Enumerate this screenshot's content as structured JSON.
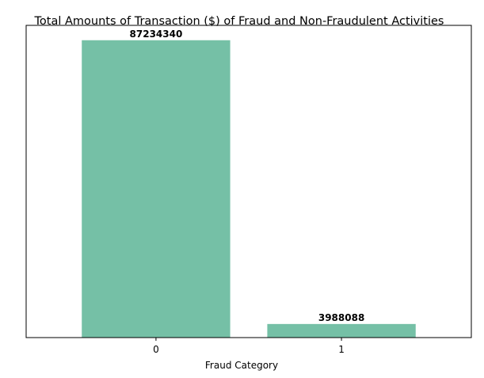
{
  "chart_data": {
    "type": "bar",
    "title": "Total Amounts of Transaction ($) of Fraud and Non-Fraudulent Activities",
    "xlabel": "Fraud Category",
    "ylabel": "",
    "categories": [
      "0",
      "1"
    ],
    "values": [
      87234340,
      3988088
    ],
    "data_labels": [
      "87234340",
      "3988088"
    ],
    "ylim": [
      0,
      91596057
    ],
    "y_axis_visible": false,
    "grid": false,
    "bar_color": "#75c0a6"
  }
}
